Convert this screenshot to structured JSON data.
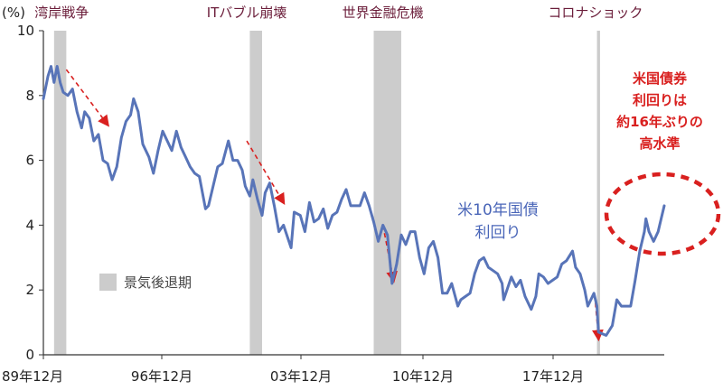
{
  "chart_data": {
    "type": "line",
    "y_unit_label": "(%)",
    "ylim": [
      0,
      10
    ],
    "y_ticks": [
      "0",
      "2",
      "4",
      "6",
      "8",
      "10"
    ],
    "x_tick_labels": [
      "89年12月",
      "96年12月",
      "03年12月",
      "10年12月",
      "17年12月"
    ],
    "x_range": [
      "1989-12",
      "2023-10"
    ],
    "recession_legend": "景気後退期",
    "recessions": [
      {
        "start": "1990-07",
        "end": "1991-03"
      },
      {
        "start": "2001-03",
        "end": "2001-11"
      },
      {
        "start": "2007-12",
        "end": "2009-06"
      },
      {
        "start": "2020-02",
        "end": "2020-04"
      }
    ],
    "event_labels": [
      {
        "label": "湾岸戦争",
        "date": "1990-12"
      },
      {
        "label": "ITバブル崩壊",
        "date": "2001-01"
      },
      {
        "label": "世界金融危機",
        "date": "2008-06"
      },
      {
        "label": "コロナショック",
        "date": "2020-01"
      }
    ],
    "series": [
      {
        "name": "米10年国債\n利回り",
        "color": "#5874b8",
        "points": [
          [
            "1989-12",
            7.9
          ],
          [
            "1990-03",
            8.6
          ],
          [
            "1990-05",
            8.9
          ],
          [
            "1990-07",
            8.4
          ],
          [
            "1990-09",
            8.9
          ],
          [
            "1990-11",
            8.4
          ],
          [
            "1991-01",
            8.1
          ],
          [
            "1991-04",
            8.0
          ],
          [
            "1991-07",
            8.2
          ],
          [
            "1991-10",
            7.5
          ],
          [
            "1992-01",
            7.0
          ],
          [
            "1992-03",
            7.5
          ],
          [
            "1992-06",
            7.3
          ],
          [
            "1992-09",
            6.6
          ],
          [
            "1992-12",
            6.8
          ],
          [
            "1993-03",
            6.0
          ],
          [
            "1993-06",
            5.9
          ],
          [
            "1993-09",
            5.4
          ],
          [
            "1993-12",
            5.8
          ],
          [
            "1994-03",
            6.7
          ],
          [
            "1994-06",
            7.2
          ],
          [
            "1994-09",
            7.4
          ],
          [
            "1994-11",
            7.9
          ],
          [
            "1995-02",
            7.5
          ],
          [
            "1995-05",
            6.5
          ],
          [
            "1995-09",
            6.1
          ],
          [
            "1995-12",
            5.6
          ],
          [
            "1996-03",
            6.3
          ],
          [
            "1996-06",
            6.9
          ],
          [
            "1996-09",
            6.6
          ],
          [
            "1996-12",
            6.3
          ],
          [
            "1997-03",
            6.9
          ],
          [
            "1997-06",
            6.4
          ],
          [
            "1997-09",
            6.1
          ],
          [
            "1997-12",
            5.8
          ],
          [
            "1998-03",
            5.6
          ],
          [
            "1998-06",
            5.5
          ],
          [
            "1998-10",
            4.5
          ],
          [
            "1998-12",
            4.6
          ],
          [
            "1999-03",
            5.2
          ],
          [
            "1999-06",
            5.8
          ],
          [
            "1999-09",
            5.9
          ],
          [
            "2000-01",
            6.6
          ],
          [
            "2000-04",
            6.0
          ],
          [
            "2000-07",
            6.0
          ],
          [
            "2000-10",
            5.7
          ],
          [
            "2000-12",
            5.2
          ],
          [
            "2001-03",
            4.9
          ],
          [
            "2001-05",
            5.4
          ],
          [
            "2001-08",
            4.8
          ],
          [
            "2001-11",
            4.3
          ],
          [
            "2002-01",
            5.0
          ],
          [
            "2002-04",
            5.3
          ],
          [
            "2002-07",
            4.6
          ],
          [
            "2002-10",
            3.8
          ],
          [
            "2003-01",
            4.0
          ],
          [
            "2003-06",
            3.3
          ],
          [
            "2003-08",
            4.4
          ],
          [
            "2003-12",
            4.3
          ],
          [
            "2004-03",
            3.8
          ],
          [
            "2004-06",
            4.7
          ],
          [
            "2004-09",
            4.1
          ],
          [
            "2004-12",
            4.2
          ],
          [
            "2005-03",
            4.5
          ],
          [
            "2005-06",
            3.9
          ],
          [
            "2005-09",
            4.3
          ],
          [
            "2005-12",
            4.4
          ],
          [
            "2006-03",
            4.8
          ],
          [
            "2006-06",
            5.1
          ],
          [
            "2006-09",
            4.6
          ],
          [
            "2006-12",
            4.6
          ],
          [
            "2007-03",
            4.6
          ],
          [
            "2007-06",
            5.0
          ],
          [
            "2007-09",
            4.6
          ],
          [
            "2007-12",
            4.1
          ],
          [
            "2008-03",
            3.5
          ],
          [
            "2008-06",
            4.0
          ],
          [
            "2008-09",
            3.7
          ],
          [
            "2008-12",
            2.2
          ],
          [
            "2009-03",
            2.8
          ],
          [
            "2009-06",
            3.7
          ],
          [
            "2009-09",
            3.4
          ],
          [
            "2009-12",
            3.8
          ],
          [
            "2010-03",
            3.8
          ],
          [
            "2010-06",
            3.0
          ],
          [
            "2010-09",
            2.5
          ],
          [
            "2010-12",
            3.3
          ],
          [
            "2011-03",
            3.5
          ],
          [
            "2011-06",
            3.0
          ],
          [
            "2011-09",
            1.9
          ],
          [
            "2011-12",
            1.9
          ],
          [
            "2012-03",
            2.2
          ],
          [
            "2012-07",
            1.5
          ],
          [
            "2012-09",
            1.7
          ],
          [
            "2012-12",
            1.8
          ],
          [
            "2013-03",
            1.9
          ],
          [
            "2013-06",
            2.5
          ],
          [
            "2013-09",
            2.9
          ],
          [
            "2013-12",
            3.0
          ],
          [
            "2014-03",
            2.7
          ],
          [
            "2014-06",
            2.6
          ],
          [
            "2014-09",
            2.5
          ],
          [
            "2014-12",
            2.2
          ],
          [
            "2015-01",
            1.7
          ],
          [
            "2015-06",
            2.4
          ],
          [
            "2015-09",
            2.1
          ],
          [
            "2015-12",
            2.3
          ],
          [
            "2016-03",
            1.8
          ],
          [
            "2016-07",
            1.4
          ],
          [
            "2016-10",
            1.8
          ],
          [
            "2016-12",
            2.5
          ],
          [
            "2017-03",
            2.4
          ],
          [
            "2017-06",
            2.2
          ],
          [
            "2017-09",
            2.3
          ],
          [
            "2017-12",
            2.4
          ],
          [
            "2018-03",
            2.8
          ],
          [
            "2018-06",
            2.9
          ],
          [
            "2018-10",
            3.2
          ],
          [
            "2018-12",
            2.7
          ],
          [
            "2019-03",
            2.5
          ],
          [
            "2019-06",
            2.0
          ],
          [
            "2019-08",
            1.5
          ],
          [
            "2019-12",
            1.9
          ],
          [
            "2020-02",
            1.5
          ],
          [
            "2020-03",
            0.7
          ],
          [
            "2020-08",
            0.6
          ],
          [
            "2020-12",
            0.9
          ],
          [
            "2021-03",
            1.7
          ],
          [
            "2021-06",
            1.5
          ],
          [
            "2021-09",
            1.5
          ],
          [
            "2021-12",
            1.5
          ],
          [
            "2022-03",
            2.3
          ],
          [
            "2022-06",
            3.2
          ],
          [
            "2022-09",
            3.8
          ],
          [
            "2022-10",
            4.2
          ],
          [
            "2022-12",
            3.8
          ],
          [
            "2023-03",
            3.5
          ],
          [
            "2023-06",
            3.8
          ],
          [
            "2023-08",
            4.2
          ],
          [
            "2023-10",
            4.6
          ]
        ]
      }
    ],
    "trend_arrows": [
      {
        "from": [
          "1991-03",
          8.8
        ],
        "to": [
          "1993-06",
          7.1
        ]
      },
      {
        "from": [
          "2001-01",
          6.6
        ],
        "to": [
          "2003-01",
          4.7
        ]
      },
      {
        "from": [
          "2008-06",
          4.0
        ],
        "to": [
          "2009-01",
          2.3
        ]
      },
      {
        "from": [
          "2020-01",
          1.6
        ],
        "to": [
          "2020-03",
          0.5
        ]
      }
    ],
    "annotation": "米国債券\n利回りは\n約16年ぶりの\n高水準",
    "colors": {
      "line": "#5874b8",
      "recession": "#cccccc",
      "event": "#6b1d3a",
      "annotation": "#d9201f",
      "axis": "#333333"
    }
  }
}
